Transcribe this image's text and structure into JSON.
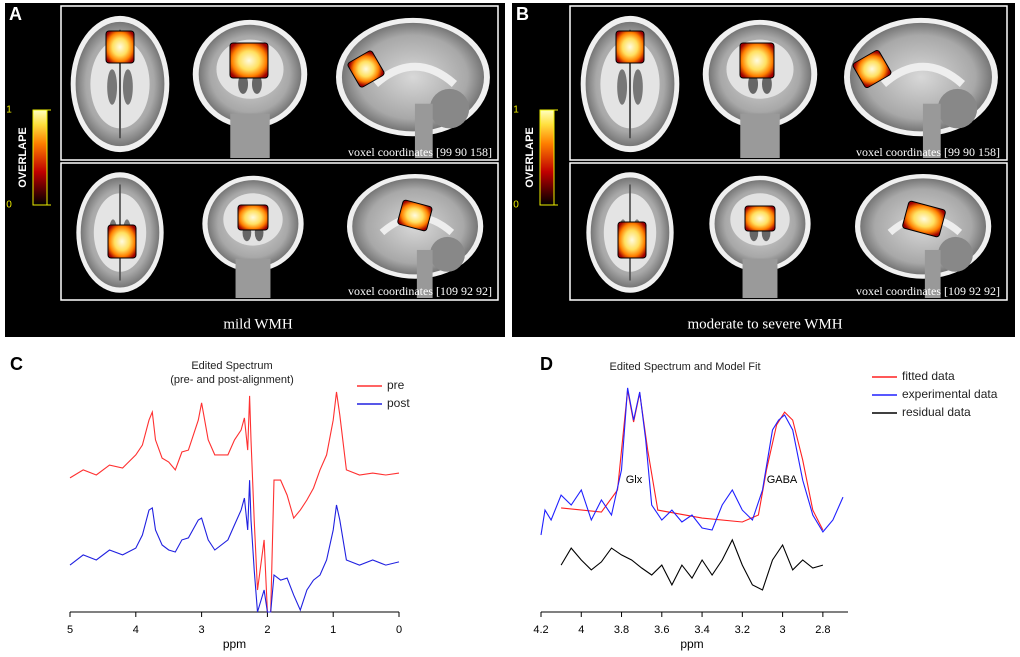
{
  "panels": [
    {
      "label": "A",
      "colorbar": {
        "title": "OVERLAPE",
        "ticks": [
          1,
          0
        ]
      },
      "rows": [
        {
          "coordinates": "voxel coordinates [99 90 158]"
        },
        {
          "coordinates": "voxel coordinates [109 92 92]"
        }
      ],
      "caption": "mild WMH"
    },
    {
      "label": "B",
      "colorbar": {
        "title": "OVERLAPE",
        "ticks": [
          1,
          0
        ]
      },
      "rows": [
        {
          "coordinates": "voxel coordinates [99 90 158]"
        },
        {
          "coordinates": "voxel coordinates [109 92 92]"
        }
      ],
      "caption": "moderate to severe WMH"
    }
  ],
  "chart_data": [
    {
      "type": "line",
      "label": "C",
      "title": "Edited Spectrum",
      "subtitle": "(pre- and post-alignment)",
      "xlabel": "ppm",
      "x": [
        5.0,
        4.8,
        4.6,
        4.4,
        4.2,
        4.0,
        3.9,
        3.8,
        3.75,
        3.7,
        3.6,
        3.5,
        3.4,
        3.3,
        3.2,
        3.05,
        3.0,
        2.9,
        2.8,
        2.6,
        2.5,
        2.4,
        2.35,
        2.3,
        2.27,
        2.25,
        2.2,
        2.15,
        2.05,
        2.0,
        1.95,
        1.9,
        1.8,
        1.7,
        1.6,
        1.5,
        1.4,
        1.3,
        1.2,
        1.1,
        1.0,
        0.95,
        0.9,
        0.8,
        0.6,
        0.4,
        0.2,
        0.0
      ],
      "xlim": [
        5,
        0
      ],
      "xticks": [
        5,
        4,
        3,
        2,
        1,
        0
      ],
      "ylim": [
        0,
        100
      ],
      "legend": "top-right",
      "series": [
        {
          "name": "pre",
          "color": "#ff3030",
          "values": [
            55.4,
            58.7,
            56.6,
            60.7,
            59.5,
            64.9,
            69,
            79.3,
            82.6,
            71.1,
            63.6,
            62,
            58.7,
            66.1,
            66.9,
            79.3,
            86.4,
            71.1,
            64.9,
            64.9,
            71.1,
            75.2,
            80.2,
            66.9,
            89.3,
            71.1,
            38,
            9.1,
            29.8,
            0,
            0,
            54.5,
            54.5,
            48.3,
            38.8,
            42.1,
            46.3,
            51.2,
            58.7,
            64.9,
            79.3,
            90.9,
            81.4,
            58.7,
            56.6,
            57.4,
            56.6,
            57.4
          ]
        },
        {
          "name": "post",
          "color": "#2020e0",
          "values": [
            19.4,
            23.6,
            21.5,
            25.6,
            23.6,
            26.4,
            31.8,
            42.1,
            43,
            33.9,
            27.7,
            25.6,
            24.8,
            29.8,
            30.6,
            38,
            38.8,
            29.8,
            25.6,
            29.8,
            36,
            42.1,
            47.1,
            33.9,
            54.5,
            38,
            17.4,
            0,
            9.1,
            0,
            0,
            15.3,
            13.2,
            14,
            7,
            0.8,
            9.1,
            13.2,
            15.3,
            21.5,
            33.9,
            44.2,
            38,
            21.5,
            19.4,
            21.5,
            19.4,
            20.7
          ]
        }
      ]
    },
    {
      "type": "line",
      "label": "D",
      "title": "Edited Spectrum and Model Fit",
      "xlabel": "ppm",
      "xlim": [
        4.2,
        2.7
      ],
      "xticks": [
        4.2,
        4,
        3.8,
        3.6,
        3.4,
        3.2,
        3,
        2.8
      ],
      "ylim": [
        0,
        100
      ],
      "legend": "top-right",
      "annotations": [
        "Glx",
        "GABA"
      ],
      "series": [
        {
          "name": "fitted data",
          "color": "#ff2020",
          "x": [
            4.1,
            3.9,
            3.82,
            3.77,
            3.74,
            3.71,
            3.67,
            3.62,
            3.4,
            3.2,
            3.12,
            3.08,
            3.03,
            2.99,
            2.95,
            2.9,
            2.85,
            2.8
          ],
          "values": [
            43,
            41.3,
            50.4,
            91.7,
            78.5,
            90.5,
            66.9,
            42.1,
            38.8,
            37.2,
            40.1,
            58.7,
            77.3,
            82.6,
            79.3,
            62.8,
            42.1,
            33.9
          ]
        },
        {
          "name": "experimental data",
          "color": "#2020ff",
          "x": [
            4.2,
            4.18,
            4.15,
            4.1,
            4.05,
            4.0,
            3.95,
            3.9,
            3.85,
            3.8,
            3.77,
            3.74,
            3.71,
            3.68,
            3.65,
            3.6,
            3.55,
            3.5,
            3.45,
            3.4,
            3.35,
            3.3,
            3.25,
            3.2,
            3.15,
            3.1,
            3.05,
            3.02,
            2.99,
            2.95,
            2.9,
            2.85,
            2.8,
            2.75,
            2.7
          ],
          "values": [
            31.8,
            42.1,
            38,
            48.3,
            44.2,
            50.4,
            38,
            46.3,
            40.1,
            58.7,
            92.6,
            79.3,
            90.9,
            71.1,
            44.2,
            38,
            42.1,
            37.2,
            40.1,
            34.7,
            33.9,
            44.2,
            50.4,
            42.1,
            38,
            50.4,
            75.2,
            79.3,
            81.4,
            75.2,
            54.5,
            40.1,
            33.1,
            38,
            47.5
          ]
        },
        {
          "name": "residual data",
          "color": "#000000",
          "x": [
            4.1,
            4.05,
            4.0,
            3.95,
            3.9,
            3.85,
            3.8,
            3.75,
            3.7,
            3.65,
            3.6,
            3.55,
            3.5,
            3.45,
            3.4,
            3.35,
            3.3,
            3.25,
            3.2,
            3.15,
            3.1,
            3.05,
            3.0,
            2.95,
            2.9,
            2.85,
            2.8
          ],
          "values": [
            19.4,
            26.4,
            21.5,
            17.4,
            20.7,
            26.4,
            23.6,
            21.5,
            18.2,
            15.3,
            19.4,
            11.2,
            19.4,
            14,
            21.5,
            15.3,
            21.5,
            29.8,
            19.4,
            11.2,
            9.1,
            21.5,
            27.7,
            17.4,
            21.5,
            18.2,
            19.4
          ]
        }
      ]
    }
  ]
}
